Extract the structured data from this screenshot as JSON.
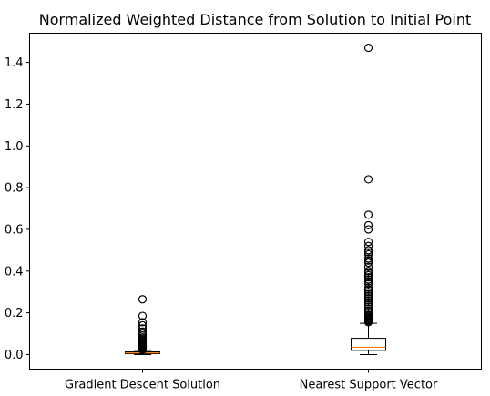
{
  "chart_data": {
    "type": "box",
    "title": "Normalized Weighted Distance from Solution to Initial Point",
    "xlabel": "",
    "ylabel": "",
    "ylim": [
      -0.07,
      1.54
    ],
    "yticks": [
      0.0,
      0.2,
      0.4,
      0.6,
      0.8,
      1.0,
      1.2,
      1.4
    ],
    "ytick_labels": [
      "0.0",
      "0.2",
      "0.4",
      "0.6",
      "0.8",
      "1.0",
      "1.2",
      "1.4"
    ],
    "categories": [
      "Gradient Descent Solution",
      "Nearest Support Vector"
    ],
    "grid": false,
    "boxes": [
      {
        "label": "Gradient Descent Solution",
        "whisker_low": 0.0,
        "q1": 0.004,
        "median": 0.008,
        "q3": 0.013,
        "whisker_high": 0.02,
        "fliers": [
          0.022,
          0.025,
          0.028,
          0.031,
          0.034,
          0.037,
          0.04,
          0.043,
          0.047,
          0.051,
          0.055,
          0.06,
          0.065,
          0.07,
          0.076,
          0.082,
          0.09,
          0.1,
          0.11,
          0.125,
          0.14,
          0.155,
          0.185,
          0.265
        ]
      },
      {
        "label": "Nearest Support Vector",
        "whisker_low": 0.0,
        "q1": 0.02,
        "median": 0.035,
        "q3": 0.078,
        "whisker_high": 0.15,
        "fliers": [
          0.155,
          0.16,
          0.165,
          0.17,
          0.175,
          0.18,
          0.185,
          0.19,
          0.2,
          0.21,
          0.22,
          0.23,
          0.24,
          0.25,
          0.26,
          0.27,
          0.28,
          0.29,
          0.3,
          0.31,
          0.32,
          0.34,
          0.35,
          0.36,
          0.37,
          0.38,
          0.39,
          0.4,
          0.42,
          0.44,
          0.45,
          0.46,
          0.48,
          0.49,
          0.5,
          0.52,
          0.54,
          0.6,
          0.62,
          0.67,
          0.84,
          1.47
        ]
      }
    ]
  }
}
